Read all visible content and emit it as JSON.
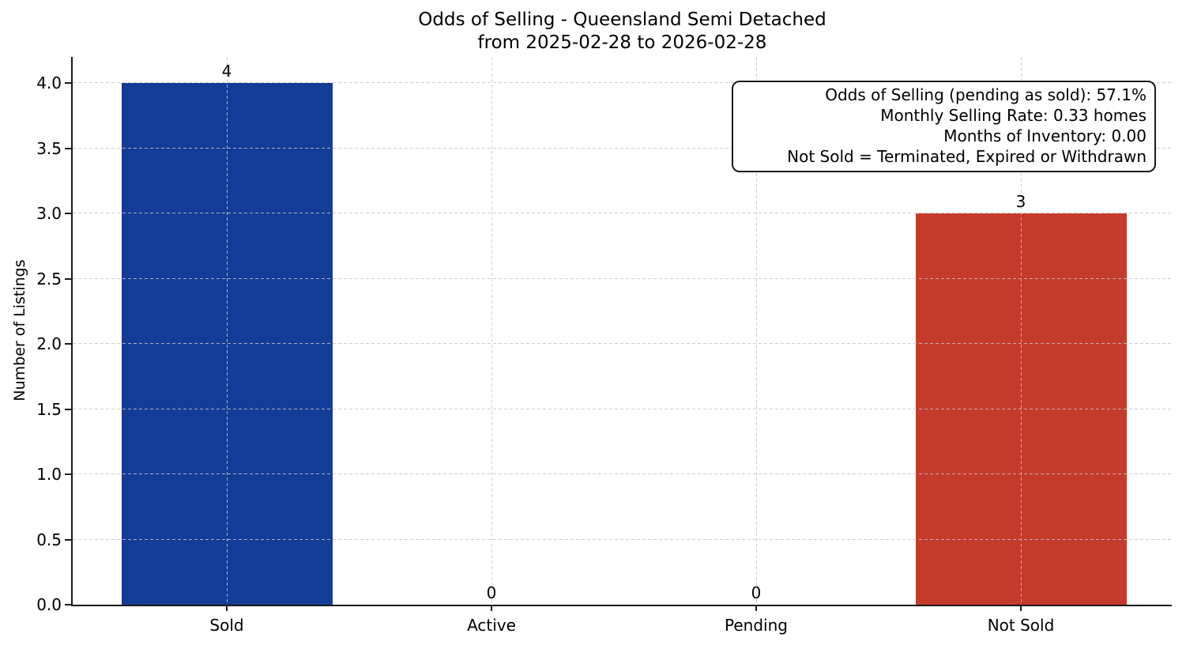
{
  "title": "Odds of Selling - Queensland Semi Detached",
  "subtitle": "from 2025-02-28 to 2026-02-28",
  "annotation": {
    "lines": [
      "Odds of Selling (pending as sold): 57.1%",
      "Monthly Selling Rate: 0.33 homes",
      "Months of Inventory: 0.00",
      "Not Sold = Terminated, Expired or Withdrawn"
    ]
  },
  "colors": {
    "sold_bar": "#133c96",
    "not_sold_bar": "#c43a2b",
    "axis": "#1a1a1a",
    "grid": "#c6c6c6",
    "background": "#ffffff",
    "text": "#000000"
  },
  "chart_data": {
    "type": "bar",
    "title": "Odds of Selling - Queensland Semi Detached",
    "subtitle": "from 2025-02-28 to 2026-02-28",
    "categories": [
      "Sold",
      "Active",
      "Pending",
      "Not Sold"
    ],
    "values": [
      4,
      0,
      0,
      3
    ],
    "bar_colors": [
      "#133c96",
      null,
      null,
      "#c43a2b"
    ],
    "value_labels": [
      "4",
      "0",
      "0",
      "3"
    ],
    "xlabel": "",
    "ylabel": "Number of Listings",
    "ylim": [
      0,
      4.2
    ],
    "yticks": [
      0.0,
      0.5,
      1.0,
      1.5,
      2.0,
      2.5,
      3.0,
      3.5,
      4.0
    ],
    "ytick_labels": [
      "0.0",
      "0.5",
      "1.0",
      "1.5",
      "2.0",
      "2.5",
      "3.0",
      "3.5",
      "4.0"
    ],
    "grid": "both-dashed",
    "legend_position": "none",
    "annotation_box": {
      "position": "top-right",
      "lines": [
        "Odds of Selling (pending as sold): 57.1%",
        "Monthly Selling Rate: 0.33 homes",
        "Months of Inventory: 0.00",
        "Not Sold = Terminated, Expired or Withdrawn"
      ]
    }
  }
}
